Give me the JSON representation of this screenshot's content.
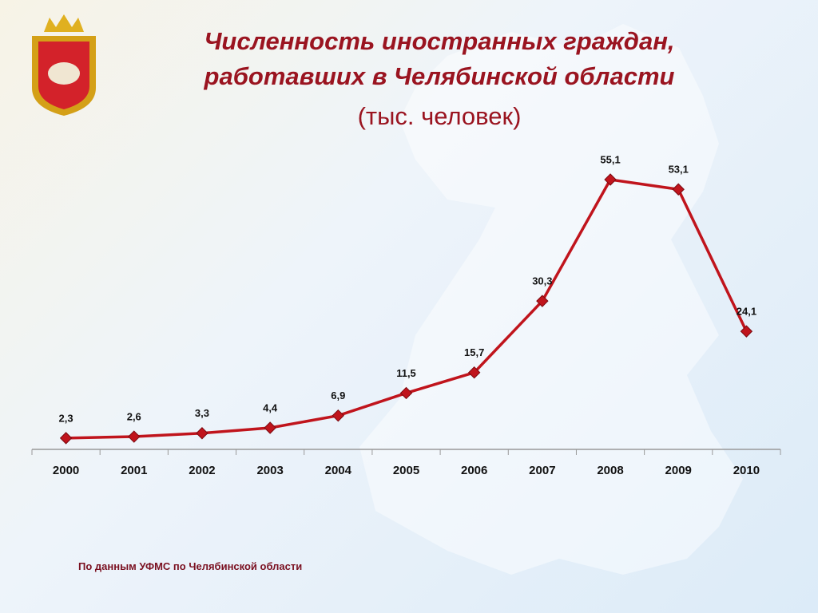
{
  "chart_data": {
    "type": "line",
    "title": "Численность иностранных граждан, работавших в Челябинской области",
    "subtitle": "(тыс. человек)",
    "source": "По данным УФМС по Челябинской области",
    "categories": [
      "2000",
      "2001",
      "2002",
      "2003",
      "2004",
      "2005",
      "2006",
      "2007",
      "2008",
      "2009",
      "2010"
    ],
    "values": [
      2.3,
      2.6,
      3.3,
      4.4,
      6.9,
      11.5,
      15.7,
      30.3,
      55.1,
      53.1,
      24.1
    ],
    "value_labels": [
      "2,3",
      "2,6",
      "3,3",
      "4,4",
      "6,9",
      "11,5",
      "15,7",
      "30,3",
      "55,1",
      "53,1",
      "24,1"
    ],
    "color": "#c0141c"
  }
}
